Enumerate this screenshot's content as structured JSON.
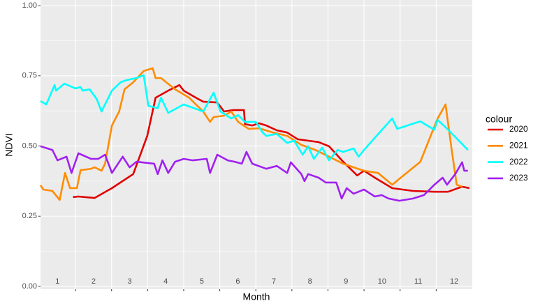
{
  "chart_data": {
    "type": "line",
    "xlabel": "Month",
    "ylabel": "NDVI",
    "legend_title": "colour",
    "legend": "right",
    "grid": true,
    "xlim": [
      0.53,
      12.5
    ],
    "xticks": [
      1,
      2,
      3,
      4,
      5,
      6,
      7,
      8,
      9,
      10,
      11,
      12
    ],
    "ylim": [
      -0.01,
      1.02
    ],
    "yticks": [
      {
        "value": 0,
        "label": "0.00"
      },
      {
        "value": 0.25,
        "label": "0.25"
      },
      {
        "value": 0.5,
        "label": "0.50"
      },
      {
        "value": 0.75,
        "label": "0.75"
      },
      {
        "value": 1,
        "label": "1.00"
      }
    ],
    "series": [
      {
        "name": "2020",
        "color": "#e00000",
        "x": [
          1.43,
          1.58,
          2.03,
          2.51,
          3.1,
          3.49,
          3.72,
          4.07,
          4.38,
          4.5,
          4.84,
          5.04,
          5.43,
          5.62,
          5.87,
          6.17,
          6.2,
          6.4,
          6.59,
          6.79,
          7.08,
          7.37,
          7.66,
          7.95,
          8.24,
          8.53,
          8.92,
          9.31,
          9.5,
          9.8,
          10.28,
          10.86,
          11.45,
          11.83,
          12.22,
          12.42
        ],
        "values": [
          0.318,
          0.32,
          0.315,
          0.35,
          0.4,
          0.536,
          0.672,
          0.697,
          0.717,
          0.697,
          0.672,
          0.658,
          0.655,
          0.623,
          0.628,
          0.628,
          0.578,
          0.573,
          0.581,
          0.573,
          0.556,
          0.548,
          0.524,
          0.519,
          0.514,
          0.499,
          0.444,
          0.395,
          0.412,
          0.387,
          0.35,
          0.34,
          0.337,
          0.337,
          0.355,
          0.35
        ]
      },
      {
        "name": "2021",
        "color": "#ff8c00",
        "x": [
          0.53,
          0.61,
          0.86,
          1.06,
          1.21,
          1.35,
          1.54,
          1.64,
          1.93,
          2.03,
          2.22,
          2.32,
          2.51,
          2.71,
          2.86,
          3.1,
          3.39,
          3.64,
          3.72,
          3.87,
          4.26,
          4.65,
          5.04,
          5.23,
          5.33,
          5.62,
          5.82,
          6.01,
          6.3,
          6.59,
          6.98,
          7.37,
          7.76,
          8.15,
          8.53,
          8.92,
          9.21,
          9.5,
          9.89,
          10.28,
          11.06,
          11.54,
          11.76,
          11.93,
          12.07,
          12.22
        ],
        "values": [
          0.36,
          0.345,
          0.34,
          0.308,
          0.404,
          0.35,
          0.35,
          0.414,
          0.419,
          0.424,
          0.412,
          0.437,
          0.573,
          0.623,
          0.702,
          0.727,
          0.767,
          0.777,
          0.742,
          0.742,
          0.702,
          0.672,
          0.623,
          0.586,
          0.603,
          0.608,
          0.623,
          0.586,
          0.561,
          0.563,
          0.548,
          0.536,
          0.504,
          0.486,
          0.462,
          0.437,
          0.424,
          0.412,
          0.404,
          0.362,
          0.444,
          0.598,
          0.648,
          0.486,
          0.362,
          0.355
        ]
      },
      {
        "name": "2022",
        "color": "#00ffff",
        "x": [
          0.53,
          0.69,
          0.92,
          0.96,
          1.19,
          1.5,
          1.64,
          1.7,
          1.89,
          2.09,
          2.22,
          2.51,
          2.75,
          2.9,
          3.19,
          3.39,
          3.52,
          3.78,
          3.87,
          4.07,
          4.5,
          5.04,
          5.33,
          5.52,
          5.82,
          6.01,
          6.2,
          6.5,
          6.69,
          6.79,
          7.08,
          7.37,
          7.56,
          7.8,
          7.95,
          8.11,
          8.34,
          8.53,
          8.77,
          8.92,
          9.21,
          9.35,
          9.5,
          9.8,
          10.28,
          10.42,
          11.06,
          11.25,
          11.45,
          11.54,
          11.83,
          12.38
        ],
        "values": [
          0.66,
          0.648,
          0.717,
          0.697,
          0.722,
          0.705,
          0.71,
          0.697,
          0.702,
          0.667,
          0.623,
          0.697,
          0.727,
          0.734,
          0.742,
          0.752,
          0.643,
          0.635,
          0.672,
          0.618,
          0.648,
          0.623,
          0.69,
          0.623,
          0.598,
          0.61,
          0.586,
          0.586,
          0.548,
          0.536,
          0.543,
          0.511,
          0.519,
          0.469,
          0.499,
          0.454,
          0.494,
          0.449,
          0.486,
          0.479,
          0.491,
          0.462,
          0.486,
          0.529,
          0.598,
          0.561,
          0.588,
          0.573,
          0.558,
          0.593,
          0.558,
          0.486
        ]
      },
      {
        "name": "2023",
        "color": "#a020f0",
        "x": [
          0.53,
          0.86,
          1.0,
          1.25,
          1.39,
          1.58,
          1.93,
          2.13,
          2.32,
          2.51,
          2.81,
          3.0,
          3.19,
          3.68,
          3.78,
          3.91,
          4.07,
          4.26,
          4.5,
          4.75,
          5.14,
          5.23,
          5.43,
          5.72,
          5.91,
          6.11,
          6.24,
          6.4,
          6.79,
          7.08,
          7.37,
          7.47,
          7.76,
          7.85,
          7.95,
          8.24,
          8.44,
          8.73,
          8.88,
          9.02,
          9.21,
          9.5,
          9.8,
          9.99,
          10.18,
          10.48,
          10.86,
          11.16,
          11.45,
          11.68,
          11.8,
          12.03,
          12.22,
          12.28,
          12.38
        ],
        "values": [
          0.499,
          0.486,
          0.449,
          0.462,
          0.404,
          0.474,
          0.454,
          0.454,
          0.469,
          0.404,
          0.462,
          0.424,
          0.444,
          0.437,
          0.4,
          0.449,
          0.404,
          0.444,
          0.454,
          0.449,
          0.454,
          0.404,
          0.469,
          0.449,
          0.444,
          0.437,
          0.479,
          0.437,
          0.419,
          0.429,
          0.404,
          0.442,
          0.4,
          0.375,
          0.4,
          0.387,
          0.37,
          0.37,
          0.313,
          0.35,
          0.33,
          0.345,
          0.32,
          0.325,
          0.313,
          0.305,
          0.313,
          0.325,
          0.362,
          0.387,
          0.362,
          0.4,
          0.442,
          0.412,
          0.412
        ]
      }
    ]
  }
}
